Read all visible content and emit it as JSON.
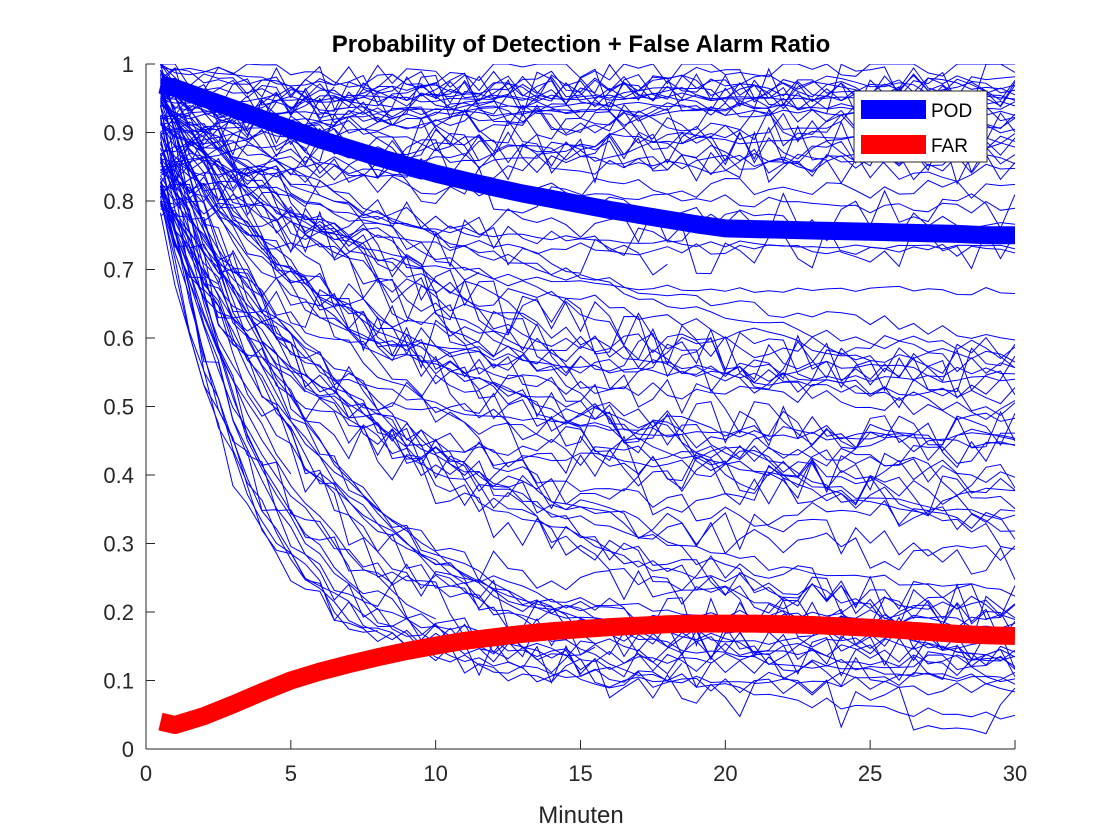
{
  "chart_data": {
    "type": "line",
    "title": "Probability of Detection + False Alarm Ratio",
    "xlabel": "Minuten",
    "ylabel": "",
    "xlim": [
      0,
      30
    ],
    "ylim": [
      0,
      1
    ],
    "xticks": [
      0,
      5,
      10,
      15,
      20,
      25,
      30
    ],
    "yticks": [
      0,
      0.1,
      0.2,
      0.3,
      0.4,
      0.5,
      0.6,
      0.7,
      0.8,
      0.9,
      1
    ],
    "xtick_labels": [
      "0",
      "5",
      "10",
      "15",
      "20",
      "25",
      "30"
    ],
    "ytick_labels": [
      "0",
      "0.1",
      "0.2",
      "0.3",
      "0.4",
      "0.5",
      "0.6",
      "0.7",
      "0.8",
      "0.9",
      "1"
    ],
    "grid": false,
    "legend": {
      "position": "top-right",
      "entries": [
        "POD",
        "FAR"
      ]
    },
    "colors": {
      "thin": "#0000ff",
      "pod": "#0000ff",
      "far": "#ff0000"
    },
    "series": [
      {
        "name": "POD",
        "color": "#0000ff",
        "x": [
          0.5,
          1,
          2,
          3,
          4,
          5,
          6,
          7,
          8,
          9,
          10,
          11,
          12,
          13,
          14,
          15,
          16,
          17,
          18,
          19,
          20,
          21,
          22,
          23,
          24,
          25,
          26,
          27,
          28,
          29,
          30
        ],
        "values": [
          0.97,
          0.965,
          0.95,
          0.935,
          0.92,
          0.905,
          0.89,
          0.877,
          0.864,
          0.852,
          0.84,
          0.83,
          0.82,
          0.811,
          0.803,
          0.795,
          0.787,
          0.78,
          0.773,
          0.766,
          0.76,
          0.759,
          0.758,
          0.757,
          0.756,
          0.755,
          0.754,
          0.753,
          0.752,
          0.75,
          0.75
        ]
      },
      {
        "name": "FAR",
        "color": "#ff0000",
        "x": [
          0.5,
          1,
          2,
          3,
          4,
          5,
          6,
          7,
          8,
          9,
          10,
          11,
          12,
          13,
          14,
          15,
          16,
          17,
          18,
          19,
          20,
          21,
          22,
          23,
          24,
          25,
          26,
          27,
          28,
          29,
          30
        ],
        "values": [
          0.04,
          0.035,
          0.048,
          0.065,
          0.083,
          0.1,
          0.113,
          0.124,
          0.134,
          0.143,
          0.151,
          0.158,
          0.163,
          0.168,
          0.172,
          0.175,
          0.178,
          0.18,
          0.182,
          0.183,
          0.183,
          0.183,
          0.182,
          0.181,
          0.179,
          0.177,
          0.174,
          0.171,
          0.168,
          0.166,
          0.165
        ]
      }
    ],
    "individual_runs": {
      "count": 110,
      "x_start": 0.5,
      "x_end": 30,
      "color": "#0000ff",
      "note_in_image": ""
    }
  }
}
